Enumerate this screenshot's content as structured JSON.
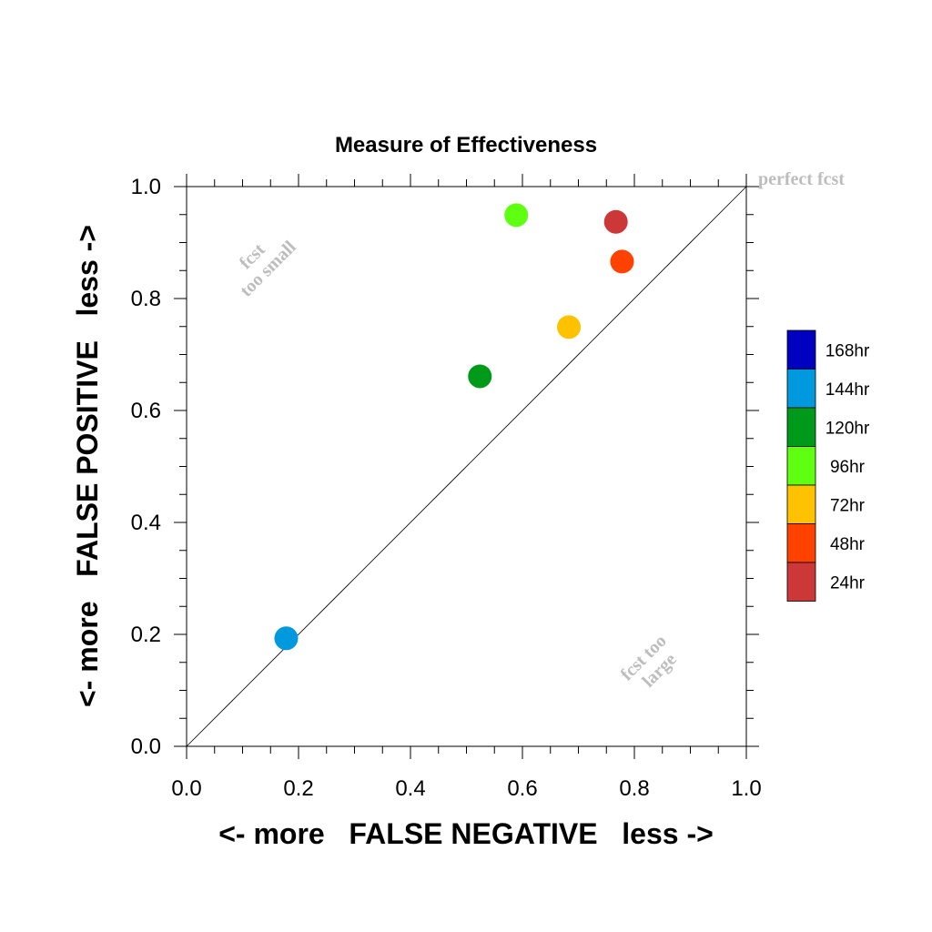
{
  "chart_data": {
    "type": "scatter",
    "title": "Measure of Effectiveness",
    "xlabel": "<- more   FALSE NEGATIVE   less ->",
    "ylabel": "<- more   FALSE POSITIVE   less ->",
    "xlim": [
      0.0,
      1.0
    ],
    "ylim": [
      0.0,
      1.0
    ],
    "x_ticks": [
      "0.0",
      "0.2",
      "0.4",
      "0.6",
      "0.8",
      "1.0"
    ],
    "y_ticks": [
      "0.0",
      "0.2",
      "0.4",
      "0.6",
      "0.8",
      "1.0"
    ],
    "grid": false,
    "reference_line": {
      "from": [
        0,
        0
      ],
      "to": [
        1,
        1
      ]
    },
    "annotations": {
      "perfect": "perfect fcst",
      "too_small_line1": "fcst",
      "too_small_line2": "too small",
      "too_large_line1": "fcst too",
      "too_large_line2": "large"
    },
    "legend": {
      "position": "right",
      "entries": [
        {
          "label": "168hr",
          "color": "#0000c0"
        },
        {
          "label": "144hr",
          "color": "#0099dd"
        },
        {
          "label": "120hr",
          "color": "#009a1a"
        },
        {
          "label": "96hr",
          "color": "#5fff12"
        },
        {
          "label": "72hr",
          "color": "#ffc200"
        },
        {
          "label": "48hr",
          "color": "#ff4200"
        },
        {
          "label": "24hr",
          "color": "#cc3838"
        }
      ]
    },
    "points": [
      {
        "series": "24hr",
        "x": 0.767,
        "y": 0.937,
        "color": "#cc3838"
      },
      {
        "series": "48hr",
        "x": 0.778,
        "y": 0.866,
        "color": "#ff4200"
      },
      {
        "series": "72hr",
        "x": 0.683,
        "y": 0.749,
        "color": "#ffc200"
      },
      {
        "series": "96hr",
        "x": 0.589,
        "y": 0.949,
        "color": "#5fff12"
      },
      {
        "series": "120hr",
        "x": 0.524,
        "y": 0.661,
        "color": "#009a1a"
      },
      {
        "series": "144hr",
        "x": 0.178,
        "y": 0.193,
        "color": "#0099dd"
      }
    ]
  }
}
